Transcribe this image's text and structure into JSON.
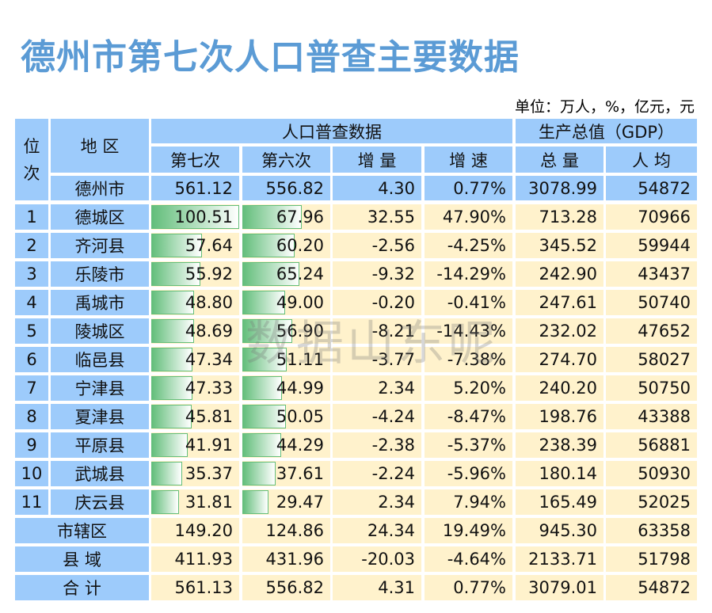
{
  "title": "德州市第七次人口普查主要数据",
  "unit": "单位：万人，%，亿元，元",
  "header": {
    "rank": "位\n次",
    "region": "地 区",
    "census_group": "人口普查数据",
    "gdp_group": "生产总值（GDP）",
    "cols": [
      "第七次",
      "第六次",
      "增 量",
      "增 速",
      "总 量",
      "人 均"
    ]
  },
  "city_row": {
    "name": "德州市",
    "values": [
      "561.12",
      "556.82",
      "4.30",
      "0.77%",
      "3078.99",
      "54872"
    ]
  },
  "rows": [
    {
      "rank": "1",
      "name": "德城区",
      "values": [
        "100.51",
        "67.96",
        "32.55",
        "47.90%",
        "713.28",
        "70966"
      ]
    },
    {
      "rank": "2",
      "name": "齐河县",
      "values": [
        "57.64",
        "60.20",
        "-2.56",
        "-4.25%",
        "345.52",
        "59944"
      ]
    },
    {
      "rank": "3",
      "name": "乐陵市",
      "values": [
        "55.92",
        "65.24",
        "-9.32",
        "-14.29%",
        "242.90",
        "43437"
      ]
    },
    {
      "rank": "4",
      "name": "禹城市",
      "values": [
        "48.80",
        "49.00",
        "-0.20",
        "-0.41%",
        "247.61",
        "50740"
      ]
    },
    {
      "rank": "5",
      "name": "陵城区",
      "values": [
        "48.69",
        "56.90",
        "-8.21",
        "-14.43%",
        "232.02",
        "47652"
      ]
    },
    {
      "rank": "6",
      "name": "临邑县",
      "values": [
        "47.34",
        "51.11",
        "-3.77",
        "-7.38%",
        "274.70",
        "58027"
      ]
    },
    {
      "rank": "7",
      "name": "宁津县",
      "values": [
        "47.33",
        "44.99",
        "2.34",
        "5.20%",
        "240.20",
        "50750"
      ]
    },
    {
      "rank": "8",
      "name": "夏津县",
      "values": [
        "45.81",
        "50.05",
        "-4.24",
        "-8.47%",
        "198.76",
        "43388"
      ]
    },
    {
      "rank": "9",
      "name": "平原县",
      "values": [
        "41.91",
        "44.29",
        "-2.38",
        "-5.37%",
        "238.39",
        "56881"
      ]
    },
    {
      "rank": "10",
      "name": "武城县",
      "values": [
        "35.37",
        "37.61",
        "-2.24",
        "-5.96%",
        "180.14",
        "50930"
      ]
    },
    {
      "rank": "11",
      "name": "庆云县",
      "values": [
        "31.81",
        "29.47",
        "2.34",
        "7.94%",
        "165.49",
        "52025"
      ]
    }
  ],
  "summary": [
    {
      "name": "市辖区",
      "values": [
        "149.20",
        "124.86",
        "24.34",
        "19.49%",
        "945.30",
        "63358"
      ]
    },
    {
      "name": "县 域",
      "values": [
        "411.93",
        "431.96",
        "-20.03",
        "-4.64%",
        "2133.71",
        "51798"
      ]
    },
    {
      "name": "合 计",
      "values": [
        "561.13",
        "556.82",
        "4.31",
        "0.77%",
        "3079.01",
        "54872"
      ]
    }
  ],
  "data_bar": {
    "max": 100.51,
    "color": "#63be7b"
  },
  "colors": {
    "header": "#9dcbfb",
    "body": "#fff2cc",
    "title": "#5b9bd5"
  },
  "watermark": "数据山东呢"
}
